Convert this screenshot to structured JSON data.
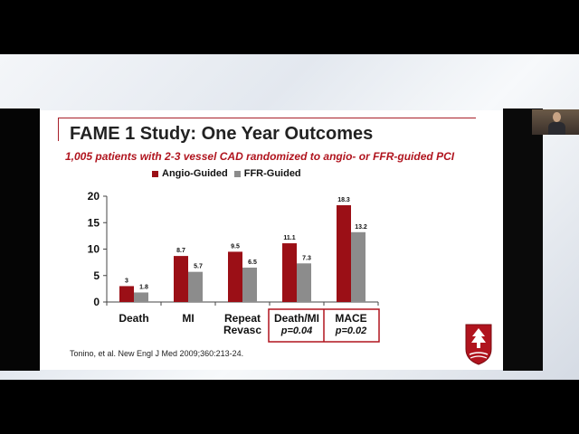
{
  "colors": {
    "accent": "#b0141e",
    "angio": "#9b0f16",
    "ffr": "#8c8c8c"
  },
  "slide": {
    "title": "FAME 1 Study: One Year Outcomes",
    "subtitle": "1,005 patients with 2-3 vessel CAD randomized to angio- or FFR-guided PCI",
    "citation": "Tonino, et al. New Engl J Med 2009;360:213-24."
  },
  "chart_data": {
    "type": "bar",
    "categories": [
      "Death",
      "MI",
      "Repeat Revasc",
      "Death/MI",
      "MACE"
    ],
    "series": [
      {
        "name": "Angio-Guided",
        "values": [
          3,
          8.7,
          9.5,
          11.1,
          18.3
        ]
      },
      {
        "name": "FFR-Guided",
        "values": [
          1.8,
          5.7,
          6.5,
          7.3,
          13.2
        ]
      }
    ],
    "ylim": [
      0,
      20
    ],
    "yticks": [
      0,
      5,
      10,
      15,
      20
    ],
    "data_labels": [
      [
        "3",
        "8.7",
        "9.5",
        "11.1",
        "18.3"
      ],
      [
        "1.8",
        "5.7",
        "6.5",
        "7.3",
        "13.2"
      ]
    ],
    "category_lines": [
      [
        "Death"
      ],
      [
        "MI"
      ],
      [
        "Repeat",
        "Revasc"
      ],
      [
        "Death/MI",
        "p=0.04"
      ],
      [
        "MACE",
        "p=0.02"
      ]
    ],
    "highlighted_categories": [
      "Death/MI",
      "MACE"
    ],
    "legend_placement": "top",
    "grid": false,
    "xlabel": "",
    "ylabel": ""
  }
}
